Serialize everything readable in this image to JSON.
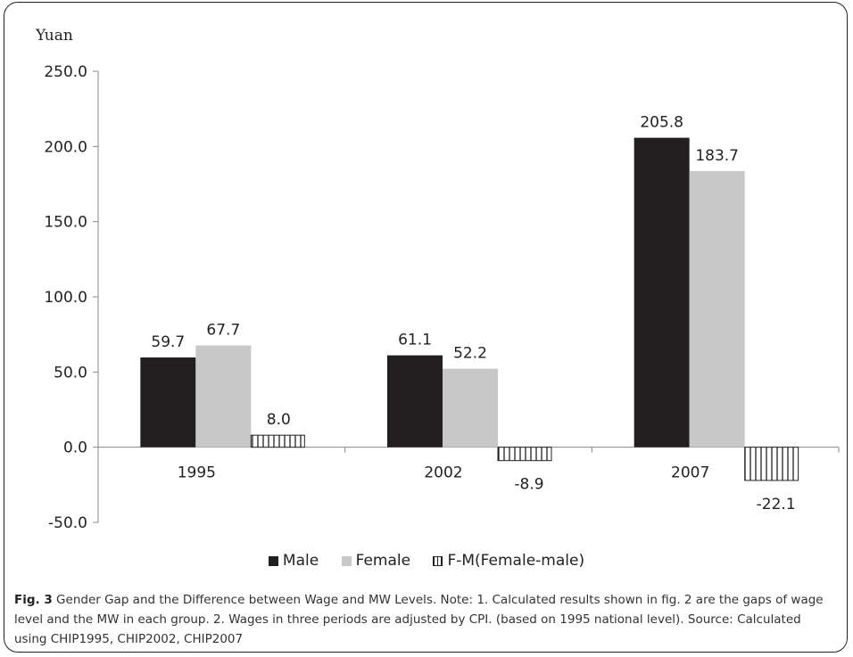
{
  "y_unit": "Yuan",
  "caption": {
    "fig_label": "Fig. 3",
    "text": "Gender Gap and the Difference between Wage and MW Levels. Note: 1. Calculated results shown in fig. 2 are the gaps of wage level and the MW in each group. 2. Wages in three periods are adjusted by CPI. (based on 1995 national level). Source: Calculated using CHIP1995, CHIP2002, CHIP2007"
  },
  "legend": {
    "items": [
      "Male",
      "Female",
      "F-M(Female-male)"
    ]
  },
  "colors": {
    "male": "#231f20",
    "female": "#c8c8c8",
    "diff_stroke": "#222222"
  },
  "chart_data": {
    "type": "bar",
    "categories": [
      "1995",
      "2002",
      "2007"
    ],
    "series": [
      {
        "name": "Male",
        "values": [
          59.7,
          61.1,
          205.8
        ],
        "labels": [
          "59.7",
          "61.1",
          "205.8"
        ]
      },
      {
        "name": "Female",
        "values": [
          67.7,
          52.2,
          183.7
        ],
        "labels": [
          "67.7",
          "52.2",
          "183.7"
        ]
      },
      {
        "name": "F-M(Female-male)",
        "values": [
          8.0,
          -8.9,
          -22.1
        ],
        "labels": [
          "8.0",
          "-8.9",
          "-22.1"
        ]
      }
    ],
    "ylim": [
      -50,
      250
    ],
    "yticks": [
      "250.0",
      "200.0",
      "150.0",
      "100.0",
      "50.0",
      "0.0",
      "-50.0"
    ],
    "ylabel": "Yuan",
    "xlabel": "",
    "grid": false,
    "legend_position": "bottom"
  }
}
